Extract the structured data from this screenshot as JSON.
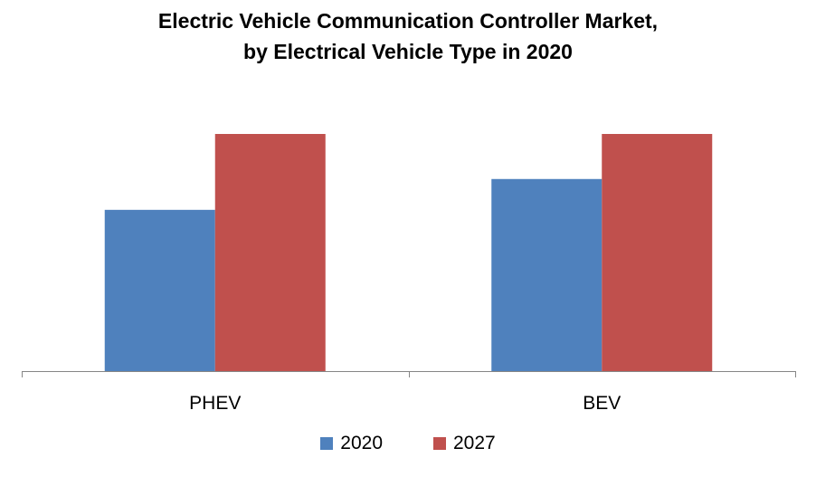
{
  "chart_data": {
    "type": "bar",
    "title": "Electric Vehicle Communication Controller Market,",
    "subtitle": "by Electrical Vehicle Type in 2020",
    "categories": [
      "PHEV",
      "BEV"
    ],
    "series": [
      {
        "name": "2020",
        "color": "#4F81BD",
        "values": [
          68,
          81
        ]
      },
      {
        "name": "2027",
        "color": "#C0504D",
        "values": [
          100,
          100
        ]
      }
    ],
    "xlabel": "",
    "ylabel": "",
    "ylim": [
      0,
      100
    ],
    "grid": false,
    "legend_position": "bottom"
  }
}
